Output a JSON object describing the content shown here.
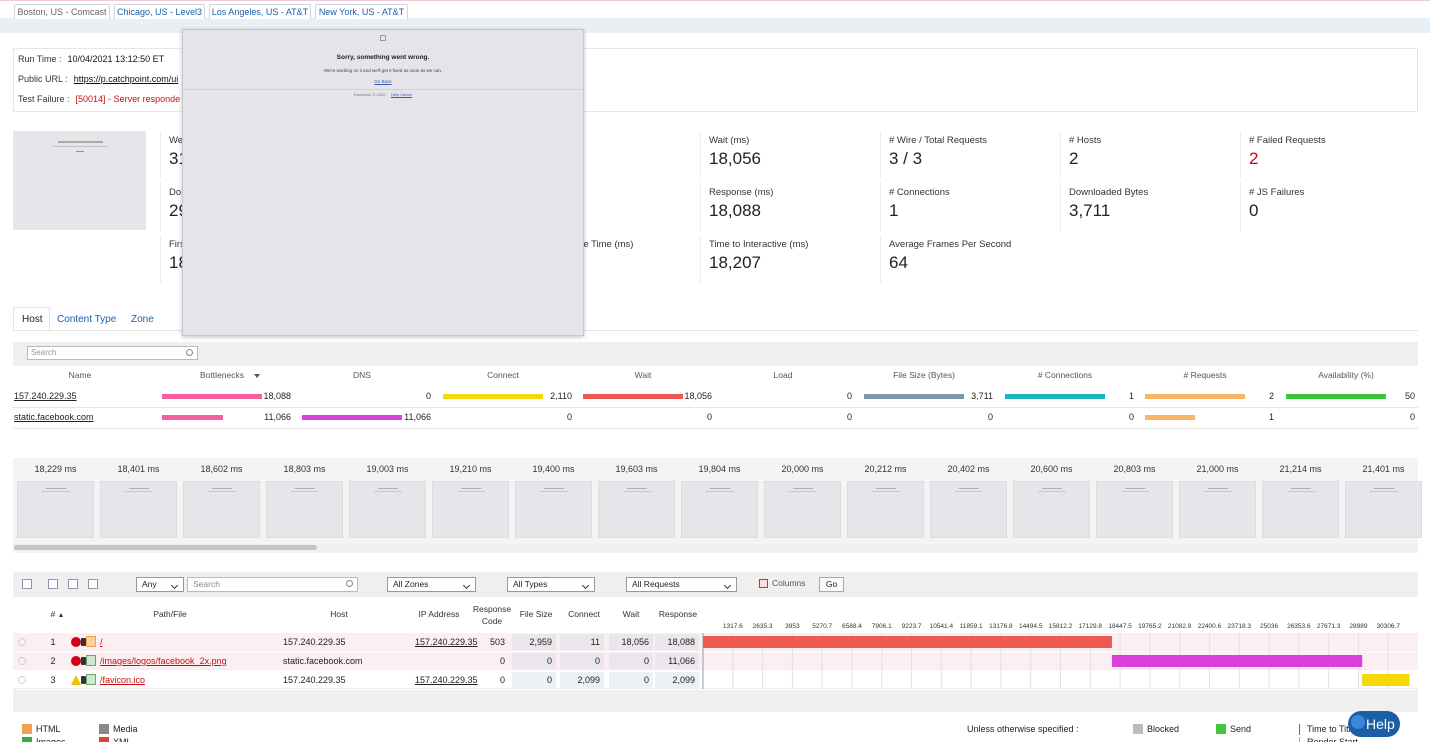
{
  "location_tabs": [
    "Boston, US - Comcast",
    "Chicago, US - Level3",
    "Los Angeles, US - AT&T",
    "New York, US - AT&T"
  ],
  "run_info": [
    {
      "label": "Run Time :",
      "value": "10/04/2021 13:12:50 ET"
    },
    {
      "label": "Public URL :",
      "value": "https://p.catchpoint.com/ui"
    },
    {
      "label": "Test Failure :",
      "value": "[50014] - Server responde",
      "color": "#c4120f"
    }
  ],
  "error_popup": {
    "title": "Sorry, something went wrong.",
    "message": "We're working on it and we'll get it fixed as soon as we can.",
    "link": "Go Back",
    "footer": "Facebook © 2020 ·",
    "footer_link": "Help Center"
  },
  "metrics": [
    {
      "label": "We",
      "value": "31"
    },
    {
      "label": "Do",
      "value": "29"
    },
    {
      "label": "Firs",
      "value": "18"
    },
    {
      "label": "plete Time (ms)"
    },
    {
      "label": "Wait (ms)",
      "value": "18,056"
    },
    {
      "label": "# Wire / Total Requests",
      "value": "3 / 3"
    },
    {
      "label": "# Hosts",
      "value": "2"
    },
    {
      "label": "# Failed Requests",
      "value": "2",
      "color": "#d0021b"
    },
    {
      "label": "Response (ms)",
      "value": "18,088"
    },
    {
      "label": "# Connections",
      "value": "1"
    },
    {
      "label": "Downloaded Bytes",
      "value": "3,711"
    },
    {
      "label": "# JS Failures",
      "value": "0"
    },
    {
      "label": "Time to Interactive (ms)",
      "value": "18,207"
    },
    {
      "label": "Average Frames Per Second",
      "value": "64"
    }
  ],
  "breakdown_tabs": [
    "Host",
    "Content Type",
    "Zone"
  ],
  "search_placeholder": "Search",
  "host_table": {
    "columns": [
      "Name",
      "Bottlenecks",
      "DNS",
      "Connect",
      "Wait",
      "Load",
      "File Size (Bytes)",
      "# Connections",
      "# Requests",
      "Availability (%)"
    ],
    "bar_colors": [
      "#f45f9d",
      "#d93fd9",
      "#f5d90a",
      "#ee5a52",
      null,
      "#7c98a8",
      "#19b5bd",
      "#f7b567",
      "#39c43a"
    ],
    "rows": [
      {
        "name": "157.240.229.35",
        "cells": [
          "18,088",
          "0",
          "2,110",
          "18,056",
          "0",
          "3,711",
          "1",
          "2",
          "50"
        ]
      },
      {
        "name": "static.facebook.com",
        "cells": [
          "11,066",
          "11,066",
          "0",
          "0",
          "0",
          "0",
          "0",
          "1",
          "0"
        ]
      }
    ]
  },
  "filmstrip": [
    "18,229 ms",
    "18,401 ms",
    "18,602 ms",
    "18,803 ms",
    "19,003 ms",
    "19,210 ms",
    "19,400 ms",
    "19,603 ms",
    "19,804 ms",
    "20,000 ms",
    "20,212 ms",
    "20,402 ms",
    "20,600 ms",
    "20,803 ms",
    "21,000 ms",
    "21,214 ms",
    "21,401 ms"
  ],
  "toolbar": {
    "any": "Any",
    "search": "Search",
    "zones": "All Zones",
    "types": "All Types",
    "requests": "All Requests",
    "columns": "Columns",
    "go": "Go"
  },
  "waterfall": {
    "columns": [
      "#",
      "Path/File",
      "Host",
      "IP Address",
      "Response Code",
      "File Size",
      "Connect",
      "Wait",
      "Response"
    ],
    "xlim": [
      0,
      31624
    ],
    "xticks": [
      1317.6,
      2635.3,
      3953,
      5270.7,
      6588.4,
      7906.1,
      9223.7,
      10541.4,
      11859.1,
      13176.8,
      14494.5,
      15812.2,
      17129.8,
      18447.5,
      19765.2,
      21082.9,
      22400.6,
      23718.3,
      25036,
      26353.6,
      27671.3,
      28989,
      30306.7
    ],
    "rows": [
      {
        "num": 1,
        "path": "/",
        "host": "157.240.229.35",
        "ip": "157.240.229.35",
        "code": 503,
        "file_size": "2,959",
        "connect": "11",
        "wait": "18,056",
        "response": "18,088",
        "color": "#ee5a52"
      },
      {
        "num": 2,
        "path": "/images/logos/facebook_2x.png",
        "host": "static.facebook.com",
        "code": 0,
        "file_size": "0",
        "connect": "0",
        "wait": "0",
        "response": "11,066",
        "color": "#d93fd9"
      },
      {
        "num": 3,
        "path": "/favicon.ico",
        "host": "157.240.229.35",
        "ip": "157.240.229.35",
        "code": 0,
        "file_size": "0",
        "connect": "2,099",
        "wait": "0",
        "response": "2,099",
        "color": "#f5d90a"
      }
    ]
  },
  "legend": {
    "note": "Unless otherwise specified :",
    "items": [
      {
        "name": "HTML",
        "color": "#f7a04b"
      },
      {
        "name": "Media",
        "color": "#8a8a8a"
      },
      {
        "name": "Images",
        "color": "#3aa64a"
      },
      {
        "name": "XML",
        "color": "#e04040"
      },
      {
        "name": "Blocked",
        "color": "#bdbdbd"
      },
      {
        "name": "Send",
        "color": "#3ec63e"
      },
      {
        "name": "Time to Title",
        "color": "#d33a3a"
      },
      {
        "name": "Render Start",
        "color": "#e0a020"
      }
    ]
  },
  "help": "Help"
}
